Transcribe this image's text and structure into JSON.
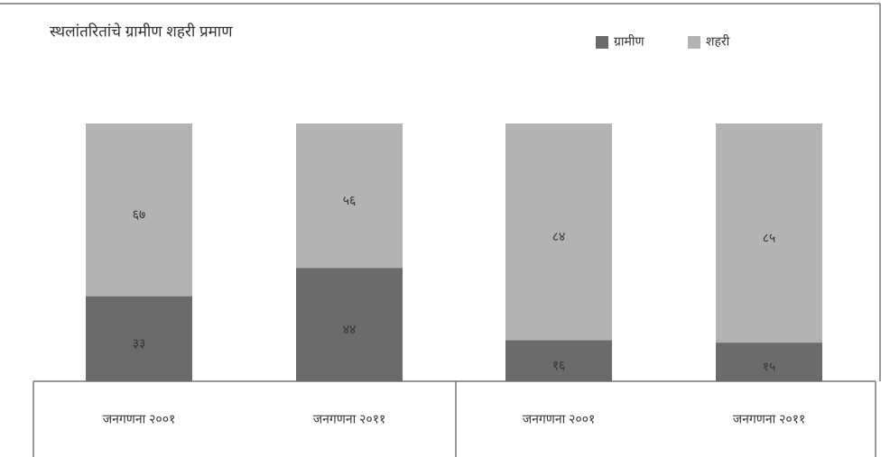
{
  "chart_data": {
    "type": "bar",
    "stacked": true,
    "title": "स्थलांतरितांचे ग्रामीण शहरी प्रमाण",
    "categories": [
      "जनगणना २००१",
      "जनगणना २०११",
      "जनगणना २००१",
      "जनगणना २०११"
    ],
    "ylim": [
      0,
      100
    ],
    "series": [
      {
        "name": "ग्रामीण",
        "color": "#6b6b6b",
        "values": [
          33,
          44,
          16,
          15
        ],
        "value_labels": [
          "३३",
          "४४",
          "१६",
          "१५"
        ]
      },
      {
        "name": "शहरी",
        "color": "#b3b3b3",
        "values": [
          67,
          56,
          84,
          85
        ],
        "value_labels": [
          "६७",
          "५६",
          "८४",
          "८५"
        ]
      }
    ]
  }
}
